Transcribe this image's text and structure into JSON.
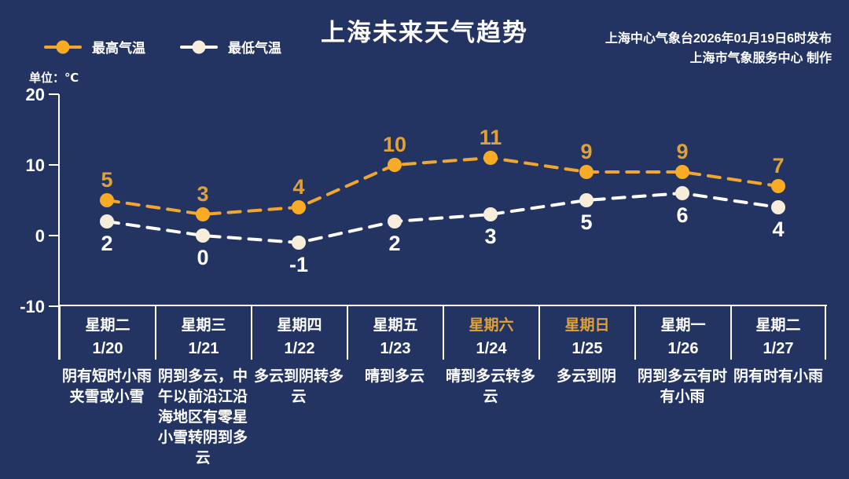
{
  "header": {
    "title": "上海未来天气趋势",
    "publisher_line1": "上海中心气象台2026年01月19日6时发布",
    "publisher_line2": "上海市气象服务中心  制作",
    "unit_label": "单位：℃"
  },
  "legend": [
    {
      "label": "最高气温",
      "line_color": "#F0A630",
      "dot_color": "#F9AB25"
    },
    {
      "label": "最低气温",
      "line_color": "#FFFFFF",
      "dot_color": "#F6EEDB"
    }
  ],
  "colors": {
    "background": "#233462",
    "axis": "#FFFFFF",
    "text": "#FFFFFF",
    "weekend_highlight": "#DDA23C"
  },
  "chart_data": {
    "type": "line",
    "title": "上海未来天气趋势",
    "unit": "℃",
    "categories": [
      "1/20",
      "1/21",
      "1/22",
      "1/23",
      "1/24",
      "1/25",
      "1/26",
      "1/27"
    ],
    "series": [
      {
        "id": "high",
        "name": "最高气温",
        "values": [
          5,
          3,
          4,
          10,
          11,
          9,
          9,
          7
        ],
        "line_color": "#F0A630",
        "dot_color": "#F9AB25",
        "label_color": "#DFA23A",
        "label_position": "above",
        "line_style": "dashed"
      },
      {
        "id": "low",
        "name": "最低气温",
        "values": [
          2,
          0,
          -1,
          2,
          3,
          5,
          6,
          4
        ],
        "line_color": "#FFFFFF",
        "dot_color": "#F6EEDB",
        "label_color": "#FFFFFF",
        "label_position": "below",
        "line_style": "dashed"
      }
    ],
    "ylim": [
      -10,
      20
    ],
    "yticks": [
      20,
      10,
      0,
      -10
    ],
    "grid": false,
    "legend_position": "top-left"
  },
  "forecast_table": {
    "columns": [
      {
        "day": "星期二",
        "date": "1/20",
        "weather": "阴有短时小雨夹雪或小雪",
        "is_weekend": false
      },
      {
        "day": "星期三",
        "date": "1/21",
        "weather": "阴到多云，中午以前沿江沿海地区有零星小雪转阴到多云",
        "is_weekend": false
      },
      {
        "day": "星期四",
        "date": "1/22",
        "weather": "多云到阴转多云",
        "is_weekend": false
      },
      {
        "day": "星期五",
        "date": "1/23",
        "weather": "晴到多云",
        "is_weekend": false
      },
      {
        "day": "星期六",
        "date": "1/24",
        "weather": "晴到多云转多云",
        "is_weekend": true
      },
      {
        "day": "星期日",
        "date": "1/25",
        "weather": "多云到阴",
        "is_weekend": true
      },
      {
        "day": "星期一",
        "date": "1/26",
        "weather": "阴到多云有时有小雨",
        "is_weekend": false
      },
      {
        "day": "星期二",
        "date": "1/27",
        "weather": "阴有时有小雨",
        "is_weekend": false
      }
    ]
  }
}
